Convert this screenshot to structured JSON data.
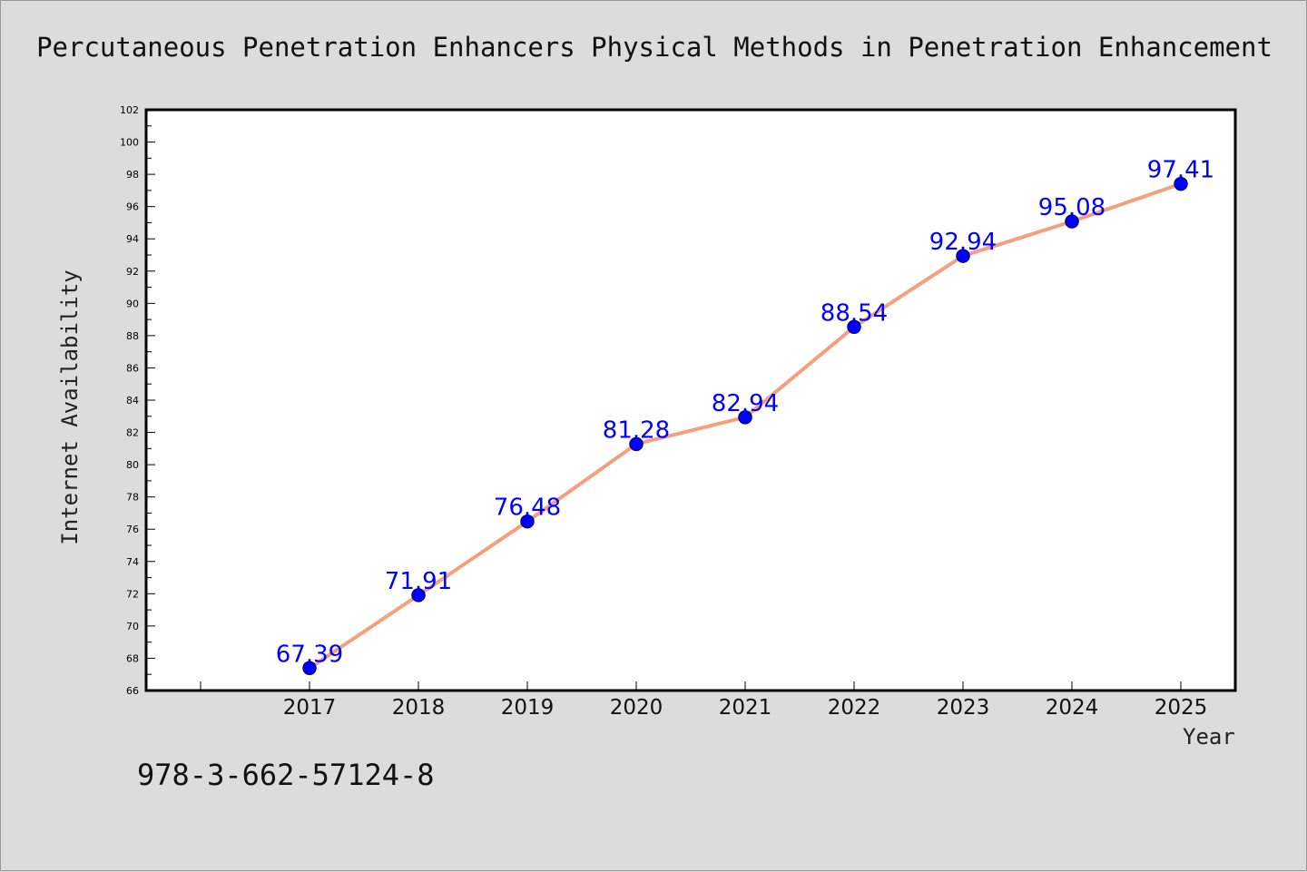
{
  "page": {
    "isbn": "978-3-662-57124-8"
  },
  "colors": {
    "background": "#dcdcdc",
    "plot_background": "#ffffff",
    "line": "#f4a07c",
    "marker": "#0000ff",
    "marker_edge": "#00008b",
    "data_label": "#0000ff"
  },
  "chart_data": {
    "type": "line",
    "title": "Percutaneous Penetration Enhancers Physical Methods in Penetration Enhancement",
    "xlabel": "Year",
    "ylabel": "Internet Availability",
    "categories": [
      "2017",
      "2018",
      "2019",
      "2020",
      "2021",
      "2022",
      "2023",
      "2024",
      "2025"
    ],
    "series": [
      {
        "values": [
          67.39,
          71.91,
          76.48,
          81.28,
          82.94,
          88.54,
          92.94,
          95.08,
          97.41
        ],
        "labels": [
          "67.39",
          "71.91",
          "76.48",
          "81.28",
          "82.94",
          "88.54",
          "92.94",
          "95.08",
          "97.41"
        ]
      }
    ],
    "ylim": [
      66,
      102
    ],
    "yticks": [
      "66",
      "68",
      "70",
      "72",
      "74",
      "76",
      "78",
      "80",
      "82",
      "84",
      "86",
      "88",
      "90",
      "92",
      "94",
      "96",
      "98",
      "100",
      "102"
    ],
    "grid": false,
    "legend": "none"
  }
}
